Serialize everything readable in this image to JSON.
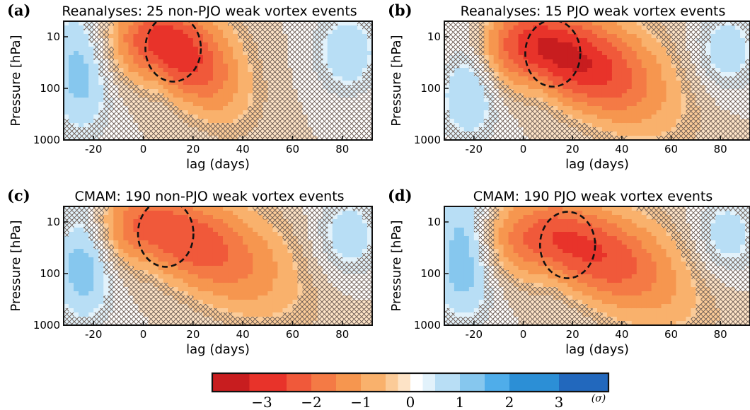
{
  "chart_data": [
    {
      "type": "heatmap",
      "panel": "(a)",
      "title": "Reanalyses: 25 non-PJO weak vortex events",
      "xlabel": "lag (days)",
      "ylabel": "Pressure [hPa]",
      "xlim": [
        -32,
        92
      ],
      "ylim": [
        1000,
        5
      ],
      "y_scale": "log",
      "x_ticks": [
        -20,
        0,
        20,
        40,
        60,
        80
      ],
      "y_ticks": [
        10,
        100,
        1000
      ],
      "warm_anomaly": {
        "center_lag": 6,
        "center_pressure": 12,
        "min_sigma": -3.2,
        "lag_extent": [
          -8,
          45
        ],
        "descends_to_hpa": 250
      },
      "cold_anomaly": {
        "center_lag": -25,
        "center_pressure": 40,
        "max_sigma": 1.3
      },
      "hatching": "not statistically significant regions outside thick solid contours"
    },
    {
      "type": "heatmap",
      "panel": "(b)",
      "title": "Reanalyses: 15 PJO weak vortex events",
      "xlabel": "lag (days)",
      "ylabel": "Pressure [hPa]",
      "xlim": [
        -32,
        92
      ],
      "ylim": [
        1000,
        5
      ],
      "y_scale": "log",
      "x_ticks": [
        -20,
        0,
        20,
        40,
        60,
        80
      ],
      "y_ticks": [
        10,
        100,
        1000
      ],
      "warm_anomaly": {
        "center_lag": 6,
        "center_pressure": 15,
        "min_sigma": -3.5,
        "lag_extent": [
          -8,
          75
        ],
        "descends_to_hpa": 500
      },
      "cold_anomaly": {
        "center_lag": -22,
        "center_pressure": 40,
        "max_sigma": 1.5
      },
      "hatching": "not statistically significant regions outside thick solid contours"
    },
    {
      "type": "heatmap",
      "panel": "(c)",
      "title": "CMAM: 190 non-PJO weak vortex events",
      "xlabel": "lag (days)",
      "ylabel": "Pressure [hPa]",
      "xlim": [
        -32,
        92
      ],
      "ylim": [
        1000,
        5
      ],
      "y_scale": "log",
      "x_ticks": [
        -20,
        0,
        20,
        40,
        60,
        80
      ],
      "y_ticks": [
        10,
        100,
        1000
      ],
      "warm_anomaly": {
        "center_lag": 3,
        "center_pressure": 12,
        "min_sigma": -2.6,
        "lag_extent": [
          -10,
          80
        ],
        "descends_to_hpa": 700
      },
      "cold_anomaly": {
        "center_lag": -24,
        "center_pressure": 30,
        "max_sigma": 1.8
      },
      "hatching": "not statistically significant regions outside thick solid contours"
    },
    {
      "type": "heatmap",
      "panel": "(d)",
      "title": "CMAM: 190 PJO weak vortex events",
      "xlabel": "lag (days)",
      "ylabel": "Pressure [hPa]",
      "xlim": [
        -32,
        92
      ],
      "ylim": [
        1000,
        5
      ],
      "y_scale": "log",
      "x_ticks": [
        -20,
        0,
        20,
        40,
        60,
        80
      ],
      "y_ticks": [
        10,
        100,
        1000
      ],
      "warm_anomaly": {
        "center_lag": 12,
        "center_pressure": 20,
        "min_sigma": -2.8,
        "lag_extent": [
          -8,
          80
        ],
        "descends_to_hpa": 900
      },
      "cold_anomaly": {
        "center_lag": -24,
        "center_pressure": 30,
        "max_sigma": 1.8
      },
      "hatching": "not statistically significant regions outside thick solid contours"
    }
  ],
  "colorbar": {
    "ticks": [
      -3,
      -2,
      -1,
      0,
      1,
      2,
      3
    ],
    "tick_labels": [
      "−3",
      "−2",
      "−1",
      "0",
      "1",
      "2",
      "3"
    ],
    "unit": "(σ)",
    "range": [
      -4,
      4
    ],
    "colors_warm": [
      "#d7191c",
      "#f46d43",
      "#fdae61",
      "#fee6cc"
    ],
    "colors_cold": [
      "#dbeefb",
      "#74c0ed",
      "#2c8fd6",
      "#1f3f9a"
    ]
  }
}
